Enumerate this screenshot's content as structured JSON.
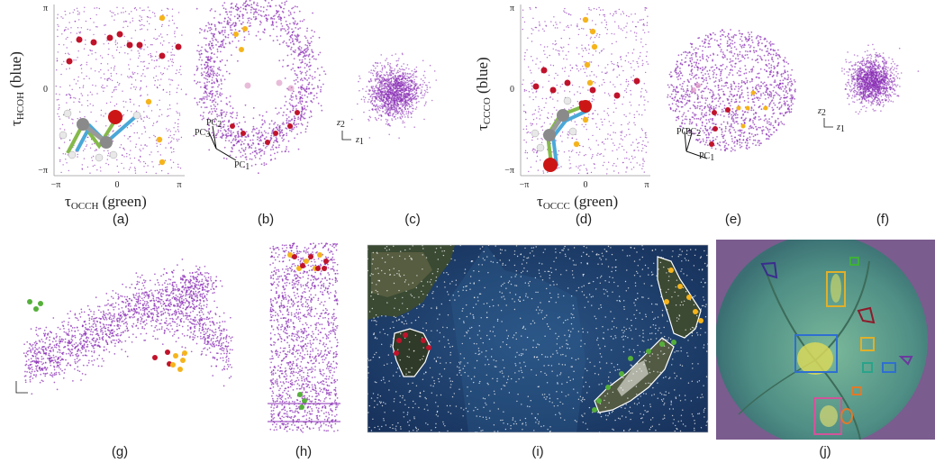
{
  "figure": {
    "panel_labels": [
      "(a)",
      "(b)",
      "(c)",
      "(d)",
      "(e)",
      "(f)",
      "(g)",
      "(h)",
      "(i)",
      "(j)"
    ],
    "ticks": {
      "pi": "π",
      "zero": "0",
      "neg_pi": "−π"
    },
    "panel_a": {
      "ylabel_main": "τ",
      "ylabel_sub": "HCOH",
      "ylabel_suffix": " (blue)",
      "xlabel_main": "τ",
      "xlabel_sub": "OCCH",
      "xlabel_suffix": " (green)"
    },
    "panel_d": {
      "ylabel_main": "τ",
      "ylabel_sub": "CCCO",
      "ylabel_suffix": " (blue)",
      "xlabel_main": "τ",
      "xlabel_sub": "OCCC",
      "xlabel_suffix": " (green)"
    },
    "axes_3d": {
      "pc1": "PC",
      "pc1_sub": "1",
      "pc2": "PC",
      "pc2_sub": "2",
      "pc3": "PC",
      "pc3_sub": "3"
    },
    "axes_2d": {
      "z1": "z",
      "z1_sub": "1",
      "z2": "z",
      "z2_sub": "2"
    }
  },
  "colors": {
    "purple": "#8b2fb5",
    "red": "#c0132b",
    "yellow": "#f5b41c",
    "green": "#55b03a",
    "ocean": "#1f3f68",
    "fundus": "#5a9a8a"
  }
}
